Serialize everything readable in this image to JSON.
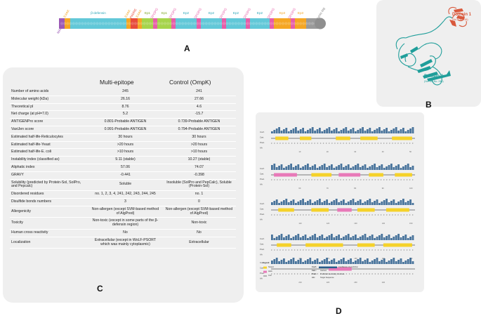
{
  "panel_a": {
    "label": "A",
    "segment_labels": [
      "MAK",
      "EAAK",
      "β-defensin",
      "EAAK",
      "PADRE",
      "EAAK",
      "Ep1",
      "GPGPG",
      "Ep1",
      "GPGPG",
      "Ep2",
      "GPGPG",
      "Ep2",
      "GPGPG",
      "Ep2",
      "GPGPG",
      "Ep2",
      "GPGPG",
      "Ep3",
      "GPGPG",
      "Ep3",
      "6xHis tag"
    ]
  },
  "panel_b": {
    "label": "B",
    "domain1_title": "Domain 1",
    "domain1_sub": "(No.1–No. 48)",
    "domain2_title": "Domain 2",
    "domain2_sub": "(No. 49–No. 245)",
    "colors": {
      "domain1": "#d9583b",
      "domain2": "#1f9e9a"
    }
  },
  "panel_c": {
    "label": "C",
    "headers": {
      "property": "",
      "multi": "Multi-epitope",
      "control": "Control (OmpK)"
    },
    "rows": [
      {
        "property": "Number of amino acids",
        "multi": "245",
        "control": "241"
      },
      {
        "property": "Molecular weight (kDa)",
        "multi": "26.16",
        "control": "27.66"
      },
      {
        "property": "Theoretical pI",
        "multi": "8.76",
        "control": "4.6"
      },
      {
        "property": "Net charge (at pH=7.0)",
        "multi": "5.2",
        "control": "-15.7"
      },
      {
        "property": "ANTIGENPro score",
        "multi": "0.801-Probable ANTIGEN",
        "control": "0.739-Probable ANTIGEN"
      },
      {
        "property": "VaxiJen score",
        "multi": "0.991-Probable ANTIGEN",
        "control": "0.794-Probable ANTIGEN"
      },
      {
        "property": "Estimated half-life-Reticulocytes",
        "multi": "30 hours",
        "control": "30 hours"
      },
      {
        "property": "Estimated half-life-Yeast",
        "multi": ">20 hours",
        "control": ">20 hours"
      },
      {
        "property": "Estimated half-life-E. coli",
        "multi": ">10 hours",
        "control": ">10 hours"
      },
      {
        "property": "Instability index (classified as)",
        "multi": "9.11 (stable)",
        "control": "10.27 (stable)"
      },
      {
        "property": "Aliphatic index",
        "multi": "57.06",
        "control": "74.07"
      },
      {
        "property": "GRAVY",
        "multi": "-0.441",
        "control": "-0.398"
      },
      {
        "property": "Solubility (predicted by Protein-Sol, SolPro, and Pepcalc)",
        "multi": "Soluble",
        "control": "Insoluble (SolPro and PepCalc), Soluble (Protein-Sol)"
      },
      {
        "property": "Disordered residues",
        "multi": "no. 1, 2, 3, 4, 241, 242, 243, 244, 245",
        "control": "no. 1"
      },
      {
        "property": "Disulfide bonds numbers",
        "multi": "3",
        "control": "0"
      },
      {
        "property": "Allergenicity",
        "multi": "Non-allergen (except SVM-based method of AlgPred)",
        "control": "Non-allergen (except SVM-based method of AlgPred)"
      },
      {
        "property": "Toxicity",
        "multi": "Non-toxic (except in some parts of the β-defensin region)",
        "control": "Non-toxic"
      },
      {
        "property": "Human cross reactivity",
        "multi": "No",
        "control": "No"
      },
      {
        "property": "Localization",
        "multi": "Extracellular (except in WoLF-PSORT which was mainly cytoplasmic)",
        "control": "Extracellular"
      }
    ]
  },
  "panel_d": {
    "label": "D",
    "row_labels": [
      "Conf.",
      "Cart.",
      "Pred.",
      "AA"
    ],
    "axis_numbers": [
      "10",
      "20",
      "30",
      "40",
      "50",
      "60",
      "70",
      "80",
      "90",
      "100",
      "110",
      "120",
      "130",
      "140",
      "150",
      "160",
      "170",
      "180",
      "190",
      "200",
      "210",
      "220",
      "230",
      "240"
    ],
    "legend": {
      "title": "Legend:",
      "strand": "Strand",
      "helix": "Helix",
      "coil": "Coil",
      "conf_key": "Conf.:",
      "conf_text": "Confidence of prediction",
      "cart_key": "Cart.:",
      "cart_text": "Cartoon",
      "pred_key": "Pred.:",
      "pred_text": "Predicted secondary structure",
      "aa_key": "AA:",
      "aa_text": "Target Sequence"
    },
    "colors": {
      "strand": "#f5d22a",
      "helix": "#e879b8",
      "coil": "#555555",
      "conf": "#2a5d8c"
    }
  }
}
